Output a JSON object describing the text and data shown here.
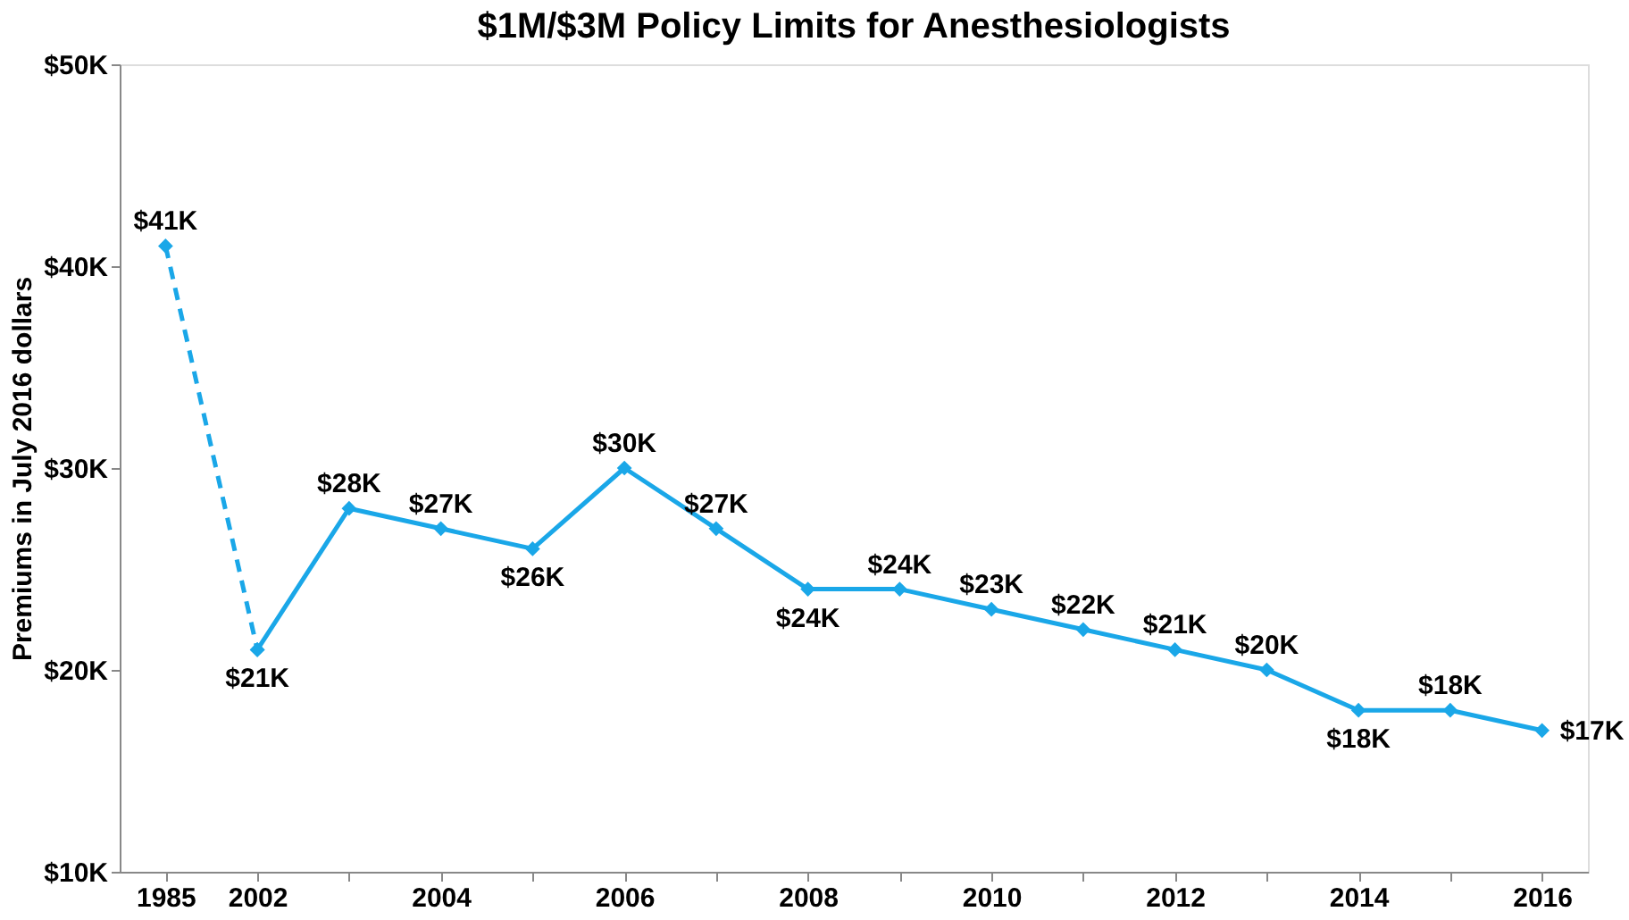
{
  "chart_data": {
    "type": "line",
    "title": "$1M/$3M Policy Limits for Anesthesiologists",
    "ylabel": "Premiums in July 2016 dollars",
    "categories": [
      "1985",
      "2002",
      null,
      "2004",
      null,
      "2006",
      null,
      "2008",
      null,
      "2010",
      null,
      "2012",
      null,
      "2014",
      null,
      "2016"
    ],
    "series": [
      {
        "color": "#1aa7e8",
        "line_style": "dashed",
        "values": [
          41000,
          21000,
          null,
          null,
          null,
          null,
          null,
          null,
          null,
          null,
          null,
          null,
          null,
          null,
          null,
          null
        ],
        "value_labels": [
          "$41K",
          null,
          null,
          null,
          null,
          null,
          null,
          null,
          null,
          null,
          null,
          null,
          null,
          null,
          null,
          null
        ]
      },
      {
        "color": "#1aa7e8",
        "line_style": "solid",
        "values": [
          null,
          21000,
          28000,
          27000,
          26000,
          30000,
          27000,
          24000,
          24000,
          23000,
          22000,
          21000,
          20000,
          18000,
          18000,
          17000
        ],
        "value_labels": [
          null,
          "$21K",
          "$28K",
          "$27K",
          "$26K",
          "$30K",
          "$27K",
          "$24K",
          "$24K",
          "$23K",
          "$22K",
          "$21K",
          "$20K",
          "$18K",
          "$18K",
          "$17K"
        ]
      }
    ],
    "ylim": [
      10000,
      50000
    ],
    "yticks": [
      {
        "value": 10000,
        "label": "$10K"
      },
      {
        "value": 20000,
        "label": "$20K"
      },
      {
        "value": 30000,
        "label": "$30K"
      },
      {
        "value": 40000,
        "label": "$40K"
      },
      {
        "value": 50000,
        "label": "$50K"
      }
    ],
    "marker": "diamond",
    "grid": false
  }
}
